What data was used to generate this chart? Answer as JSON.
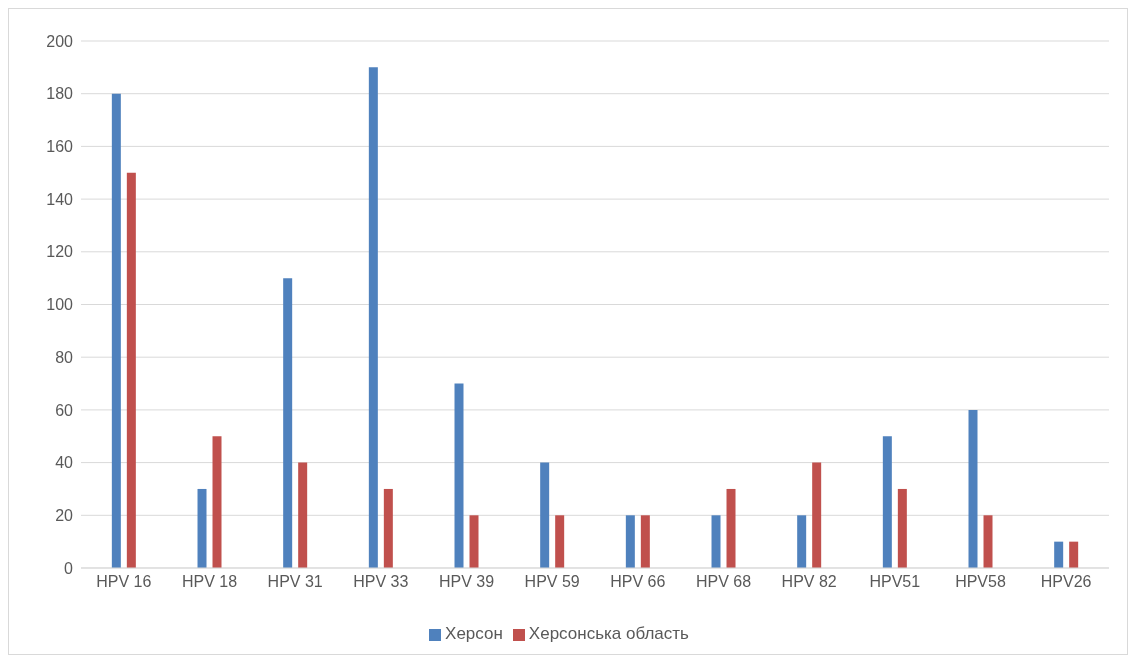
{
  "chart_data": {
    "type": "bar",
    "categories": [
      "HPV 16",
      "HPV 18",
      "HPV 31",
      "HPV 33",
      "HPV 39",
      "HPV 59",
      "HPV 66",
      "HPV 68",
      "HPV 82",
      "HPV51",
      "HPV58",
      "HPV26"
    ],
    "series": [
      {
        "name": "Херсон",
        "color": "#4f81bd",
        "values": [
          180,
          30,
          110,
          190,
          70,
          40,
          20,
          20,
          20,
          50,
          60,
          10
        ]
      },
      {
        "name": "Херсонська область",
        "color": "#c0504d",
        "values": [
          150,
          50,
          40,
          30,
          20,
          20,
          20,
          30,
          40,
          30,
          20,
          10
        ]
      }
    ],
    "ylim": [
      0,
      200
    ],
    "yticks": [
      0,
      20,
      40,
      60,
      80,
      100,
      120,
      140,
      160,
      180,
      200
    ],
    "grid": "y",
    "legend": "bottom"
  }
}
